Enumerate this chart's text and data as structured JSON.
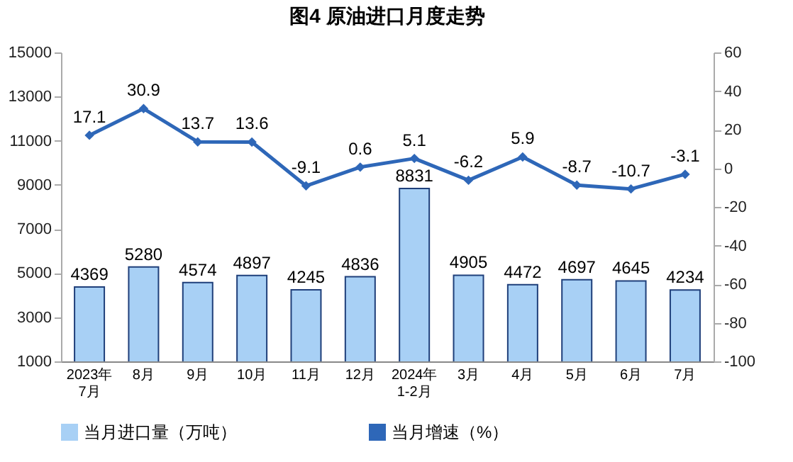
{
  "chart_data": {
    "type": "bar",
    "title": "图4  原油进口月度走势",
    "categories": [
      "2023年\n7月",
      "8月",
      "9月",
      "10月",
      "11月",
      "12月",
      "2024年\n1-2月",
      "3月",
      "4月",
      "5月",
      "6月",
      "7月"
    ],
    "series": [
      {
        "name": "当月进口量（万吨）",
        "color": "#a8d0f5",
        "values": [
          4369,
          5280,
          4574,
          4897,
          4245,
          4836,
          8831,
          4905,
          4472,
          4697,
          4645,
          4234
        ]
      },
      {
        "name": "当月增速（%）",
        "type": "line",
        "axis": "y2",
        "color": "#2e67b8",
        "values": [
          17.1,
          30.9,
          13.7,
          13.6,
          -9.1,
          0.6,
          5.1,
          -6.2,
          5.9,
          -8.7,
          -10.7,
          -3.1
        ]
      }
    ],
    "ylim": [
      1000,
      15000
    ],
    "yticks": [
      1000,
      3000,
      5000,
      7000,
      9000,
      11000,
      13000,
      15000
    ],
    "y2lim": [
      -100,
      60
    ],
    "y2ticks": [
      -100,
      -80,
      -60,
      -40,
      -20,
      0,
      20,
      40,
      60
    ],
    "data_labels": true,
    "legend": "bottom",
    "grid": false,
    "marker": "diamond",
    "line_style": "solid"
  }
}
